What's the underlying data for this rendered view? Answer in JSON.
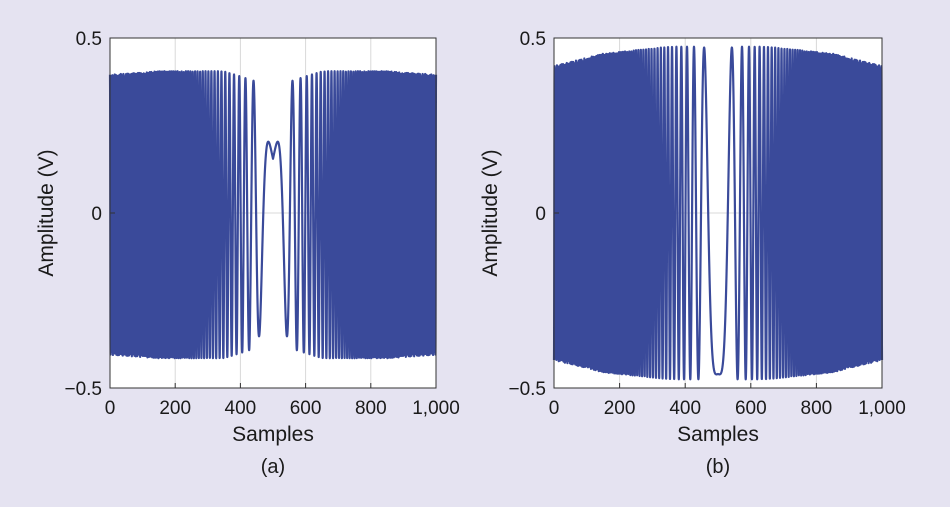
{
  "colors": {
    "background": "#e5e3f1",
    "plot_bg": "#ffffff",
    "line": "#3a4a9a",
    "grid": "#d9d9d9"
  },
  "chart_data": [
    {
      "type": "line",
      "caption": "(a)",
      "xlabel": "Samples",
      "ylabel": "Amplitude (V)",
      "xlim": [
        0,
        1000
      ],
      "ylim": [
        -0.5,
        0.5
      ],
      "xticks": [
        0,
        200,
        400,
        600,
        800,
        1000
      ],
      "xtick_labels": [
        "0",
        "200",
        "400",
        "600",
        "800",
        "1,000"
      ],
      "yticks": [
        0.5,
        0,
        -0.5
      ],
      "ytick_labels": [
        "0.5",
        "0",
        "−0.5"
      ],
      "grid": true,
      "series": [
        {
          "signal": "chirp",
          "center": 500,
          "cycles_per_sample2": 0.00028,
          "phase": 0,
          "amplitude_envelope": {
            "x": [
              0,
              150,
              350,
              450,
              500,
              550,
              650,
              850,
              1000
            ],
            "y": [
              0.4,
              0.41,
              0.41,
              0.38,
              0.16,
              0.38,
              0.41,
              0.41,
              0.4
            ]
          },
          "offset": -0.005
        }
      ]
    },
    {
      "type": "line",
      "caption": "(b)",
      "xlabel": "Samples",
      "ylabel": "Amplitude (V)",
      "xlim": [
        0,
        1000
      ],
      "ylim": [
        -0.5,
        0.5
      ],
      "xticks": [
        0,
        200,
        400,
        600,
        800,
        1000
      ],
      "xtick_labels": [
        "0",
        "200",
        "400",
        "600",
        "800",
        "1,000"
      ],
      "yticks": [
        0.5,
        0,
        -0.5
      ],
      "ytick_labels": [
        "0.5",
        "0",
        "−0.5"
      ],
      "grid": true,
      "series": [
        {
          "signal": "chirp",
          "center": 500,
          "cycles_per_sample2": 0.00028,
          "phase": 3.14159,
          "amplitude_envelope": {
            "x": [
              0,
              150,
              350,
              450,
              500,
              550,
              650,
              850,
              1000
            ],
            "y": [
              0.42,
              0.455,
              0.475,
              0.475,
              0.46,
              0.475,
              0.475,
              0.455,
              0.42
            ]
          },
          "offset": 0.0
        }
      ]
    }
  ]
}
